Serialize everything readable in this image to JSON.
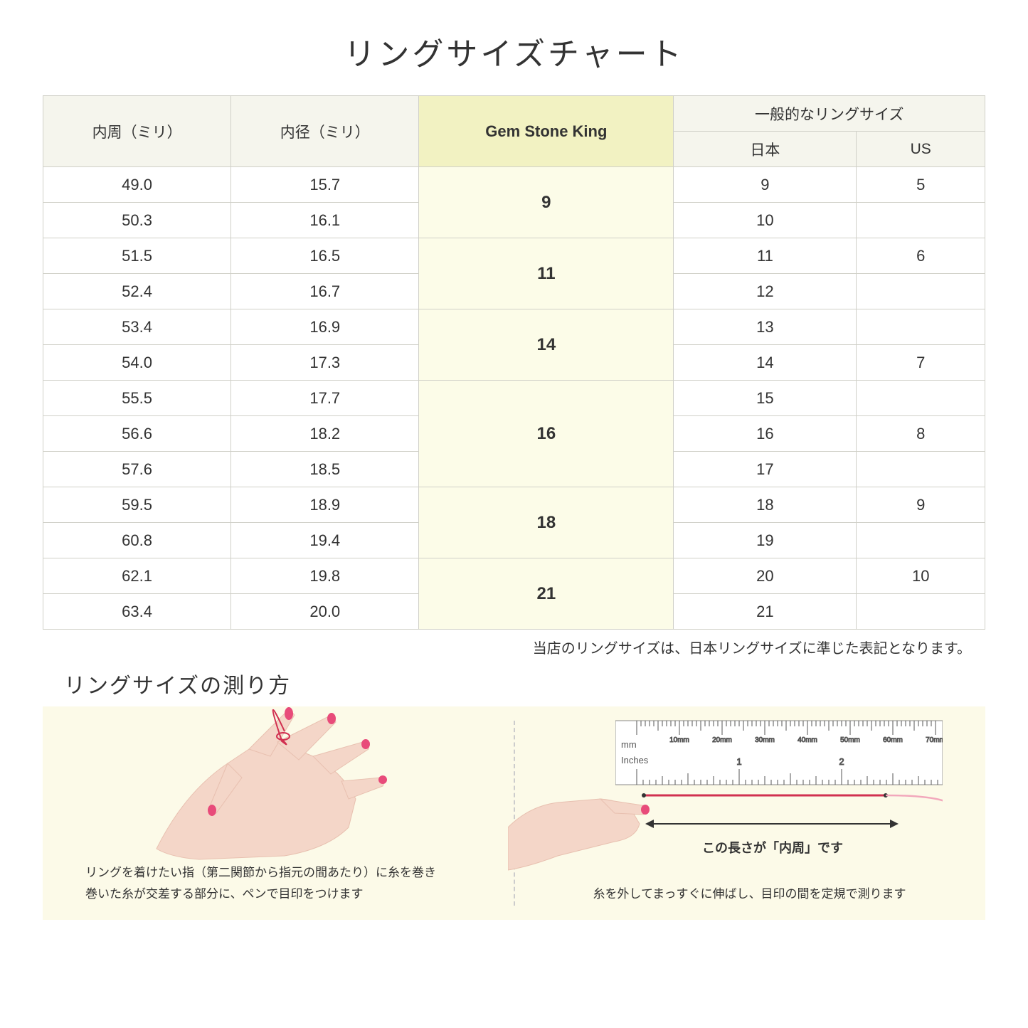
{
  "title": "リングサイズチャート",
  "headers": {
    "circumference": "内周（ミリ）",
    "diameter": "内径（ミリ）",
    "gsk": "Gem Stone King",
    "general": "一般的なリングサイズ",
    "japan": "日本",
    "us": "US"
  },
  "groups": [
    {
      "gsk": "9",
      "rows": [
        {
          "c": "49.0",
          "d": "15.7",
          "jp": "9",
          "us": "5"
        },
        {
          "c": "50.3",
          "d": "16.1",
          "jp": "10",
          "us": ""
        }
      ]
    },
    {
      "gsk": "11",
      "rows": [
        {
          "c": "51.5",
          "d": "16.5",
          "jp": "11",
          "us": "6"
        },
        {
          "c": "52.4",
          "d": "16.7",
          "jp": "12",
          "us": ""
        }
      ]
    },
    {
      "gsk": "14",
      "rows": [
        {
          "c": "53.4",
          "d": "16.9",
          "jp": "13",
          "us": ""
        },
        {
          "c": "54.0",
          "d": "17.3",
          "jp": "14",
          "us": "7"
        }
      ]
    },
    {
      "gsk": "16",
      "rows": [
        {
          "c": "55.5",
          "d": "17.7",
          "jp": "15",
          "us": ""
        },
        {
          "c": "56.6",
          "d": "18.2",
          "jp": "16",
          "us": "8"
        },
        {
          "c": "57.6",
          "d": "18.5",
          "jp": "17",
          "us": ""
        }
      ]
    },
    {
      "gsk": "18",
      "rows": [
        {
          "c": "59.5",
          "d": "18.9",
          "jp": "18",
          "us": "9"
        },
        {
          "c": "60.8",
          "d": "19.4",
          "jp": "19",
          "us": ""
        }
      ]
    },
    {
      "gsk": "21",
      "rows": [
        {
          "c": "62.1",
          "d": "19.8",
          "jp": "20",
          "us": "10"
        },
        {
          "c": "63.4",
          "d": "20.0",
          "jp": "21",
          "us": ""
        }
      ]
    }
  ],
  "note": "当店のリングサイズは、日本リングサイズに準じた表記となります。",
  "measure": {
    "title": "リングサイズの測り方",
    "left_caption": "リングを着けたい指（第二関節から指元の間あたり）に糸を巻き\n巻いた糸が交差する部分に、ペンで目印をつけます",
    "right_caption": "糸を外してまっすぐに伸ばし、目印の間を定規で測ります",
    "arrow_label": "この長さが「内周」です",
    "ruler_mm": "mm",
    "ruler_inches": "Inches",
    "ruler_mm_ticks": [
      "10mm",
      "20mm",
      "30mm",
      "40mm",
      "50mm",
      "60mm",
      "70mm"
    ],
    "ruler_inch_ticks": [
      "1",
      "2"
    ]
  },
  "colors": {
    "header_bg": "#f5f5ed",
    "gsk_header_bg": "#f2f2c2",
    "gsk_cell_bg": "#fcfce8",
    "panel_bg": "#fcfae8",
    "border": "#d0d0c8",
    "hand_skin": "#f4d6c8",
    "nail": "#e84b7a",
    "thread": "#d13050",
    "thread_light": "#f2a8bc"
  }
}
